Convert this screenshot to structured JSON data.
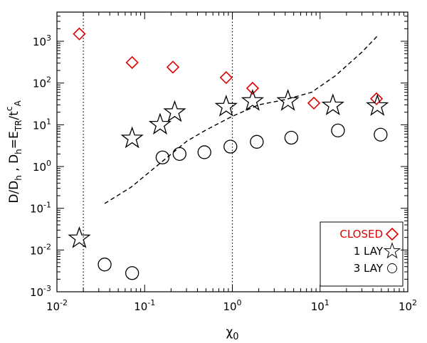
{
  "chart_data": {
    "type": "scatter",
    "xscale": "log",
    "yscale": "log",
    "xlim": [
      0.01,
      100
    ],
    "ylim": [
      0.001,
      5000
    ],
    "xlabel": "χ0",
    "ylabel": "D/Dh , Dh=ETR/tcA",
    "x_ticks": [
      {
        "value": 0.01,
        "base": "10",
        "exp": "-2"
      },
      {
        "value": 0.1,
        "base": "10",
        "exp": "-1"
      },
      {
        "value": 1,
        "base": "10",
        "exp": "0"
      },
      {
        "value": 10,
        "base": "10",
        "exp": "1"
      },
      {
        "value": 100,
        "base": "10",
        "exp": "2"
      }
    ],
    "y_ticks": [
      {
        "value": 0.001,
        "base": "10",
        "exp": "-3"
      },
      {
        "value": 0.01,
        "base": "10",
        "exp": "-2"
      },
      {
        "value": 0.1,
        "base": "10",
        "exp": "-1"
      },
      {
        "value": 1,
        "base": "10",
        "exp": "0"
      },
      {
        "value": 10,
        "base": "10",
        "exp": "1"
      },
      {
        "value": 100,
        "base": "10",
        "exp": "2"
      },
      {
        "value": 1000,
        "base": "10",
        "exp": "3"
      }
    ],
    "vlines": [
      0.02,
      1
    ],
    "grid": false,
    "legend_position": "bottom-right",
    "series": [
      {
        "name": "CLOSED",
        "marker": "diamond",
        "color": "#dd0000",
        "points": [
          [
            0.018,
            1500
          ],
          [
            0.072,
            310
          ],
          [
            0.21,
            240
          ],
          [
            0.85,
            135
          ],
          [
            1.7,
            75
          ],
          [
            8.5,
            33
          ],
          [
            44,
            42
          ]
        ]
      },
      {
        "name": "1 LAY",
        "marker": "star",
        "color": "#000000",
        "points": [
          [
            0.018,
            0.019
          ],
          [
            0.072,
            4.7
          ],
          [
            0.15,
            10
          ],
          [
            0.22,
            20
          ],
          [
            0.85,
            27
          ],
          [
            1.7,
            37
          ],
          [
            4.3,
            37
          ],
          [
            14,
            29
          ],
          [
            45,
            28
          ]
        ]
      },
      {
        "name": "3 LAY",
        "marker": "circle",
        "color": "#000000",
        "points": [
          [
            0.035,
            0.0045
          ],
          [
            0.072,
            0.0028
          ],
          [
            0.16,
            1.65
          ],
          [
            0.25,
            2.0
          ],
          [
            0.48,
            2.2
          ],
          [
            0.95,
            3.0
          ],
          [
            1.9,
            3.9
          ],
          [
            4.7,
            4.9
          ],
          [
            16,
            7.3
          ],
          [
            49,
            5.8
          ]
        ]
      },
      {
        "marker": "dashed-line",
        "color": "#000000",
        "points": [
          [
            0.035,
            0.13
          ],
          [
            0.07,
            0.32
          ],
          [
            0.15,
            1.2
          ],
          [
            0.3,
            4
          ],
          [
            0.5,
            7.5
          ],
          [
            1,
            16
          ],
          [
            2,
            30
          ],
          [
            4,
            40
          ],
          [
            8,
            60
          ],
          [
            15,
            150
          ],
          [
            30,
            550
          ],
          [
            46,
            1400
          ]
        ]
      }
    ]
  }
}
